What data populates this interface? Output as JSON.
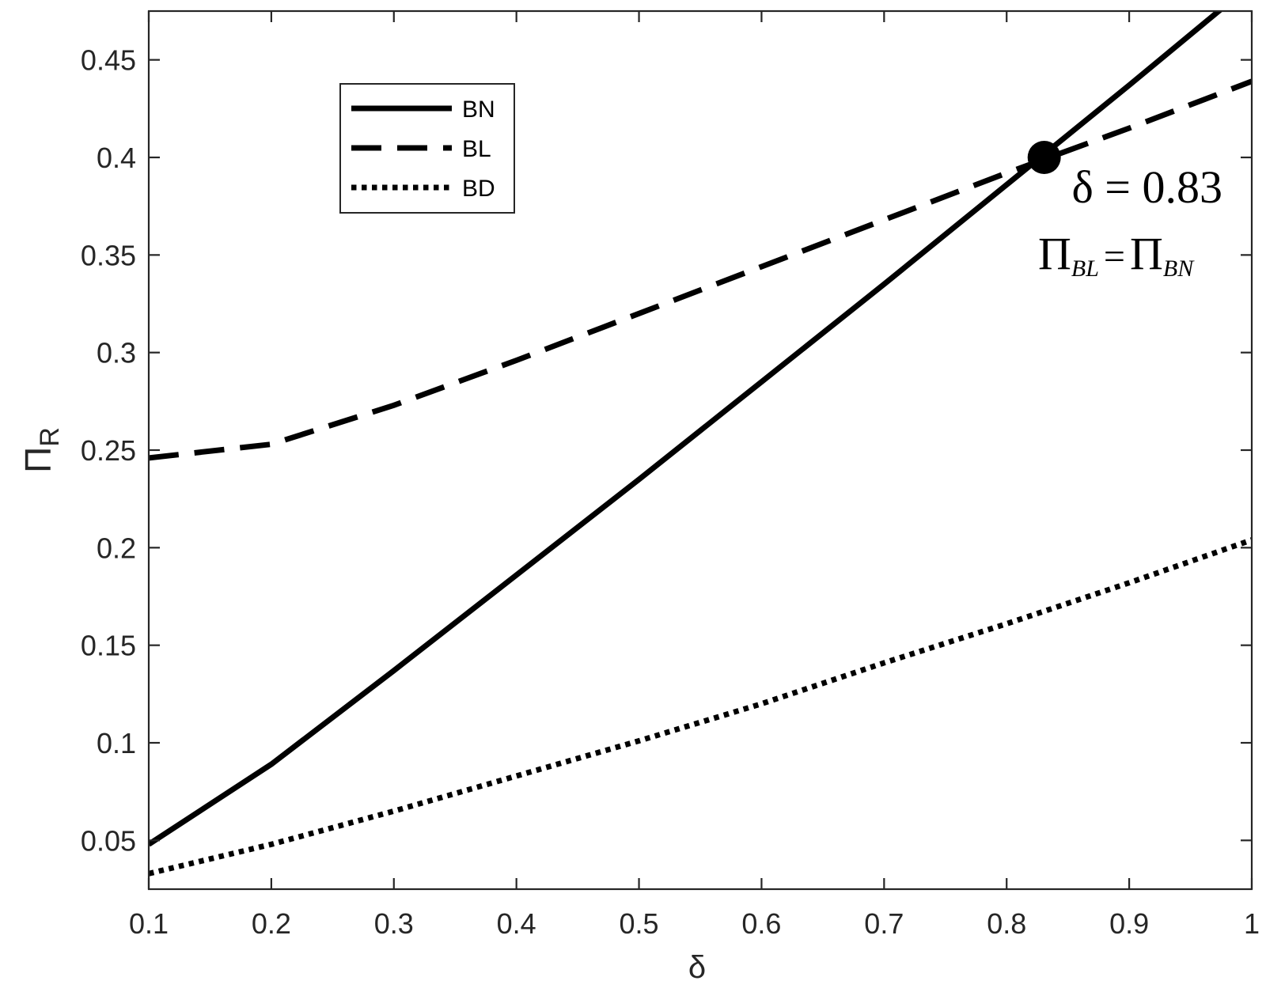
{
  "chart_data": {
    "type": "line",
    "title": "",
    "xlabel": "δ",
    "ylabel": "Π",
    "ylabel_sub": "R",
    "xlim": [
      0.1,
      1.0
    ],
    "ylim": [
      0.025,
      0.475
    ],
    "xticks": [
      0.1,
      0.2,
      0.3,
      0.4,
      0.5,
      0.6,
      0.7,
      0.8,
      0.9,
      1.0
    ],
    "xtick_labels": [
      "0.1",
      "0.2",
      "0.3",
      "0.4",
      "0.5",
      "0.6",
      "0.7",
      "0.8",
      "0.9",
      "1"
    ],
    "yticks": [
      0.05,
      0.1,
      0.15,
      0.2,
      0.25,
      0.3,
      0.35,
      0.4,
      0.45
    ],
    "ytick_labels": [
      "0.05",
      "0.1",
      "0.15",
      "0.2",
      "0.25",
      "0.3",
      "0.35",
      "0.4",
      "0.45"
    ],
    "grid": false,
    "legend_position": "top-left",
    "x": [
      0.1,
      0.2,
      0.3,
      0.4,
      0.5,
      0.6,
      0.7,
      0.8,
      0.9,
      1.0
    ],
    "series": [
      {
        "name": "BN",
        "style": "solid",
        "values": [
          0.048,
          0.089,
          0.137,
          0.186,
          0.235,
          0.285,
          0.335,
          0.386,
          0.437,
          0.489
        ]
      },
      {
        "name": "BL",
        "style": "dashed",
        "values": [
          0.246,
          0.253,
          0.273,
          0.296,
          0.32,
          0.344,
          0.368,
          0.392,
          0.415,
          0.439
        ]
      },
      {
        "name": "BD",
        "style": "dotted",
        "values": [
          0.033,
          0.048,
          0.065,
          0.083,
          0.101,
          0.12,
          0.141,
          0.161,
          0.182,
          0.204
        ]
      }
    ],
    "annotations": [
      {
        "type": "point",
        "x": 0.83,
        "y": 0.4
      },
      {
        "type": "text",
        "text": "δ = 0.83"
      },
      {
        "type": "text",
        "pi": "Π",
        "sub1": "BL",
        "eq": "=",
        "sub2": "BN"
      }
    ],
    "colors": {
      "line": "#000000",
      "axis": "#262626"
    }
  }
}
